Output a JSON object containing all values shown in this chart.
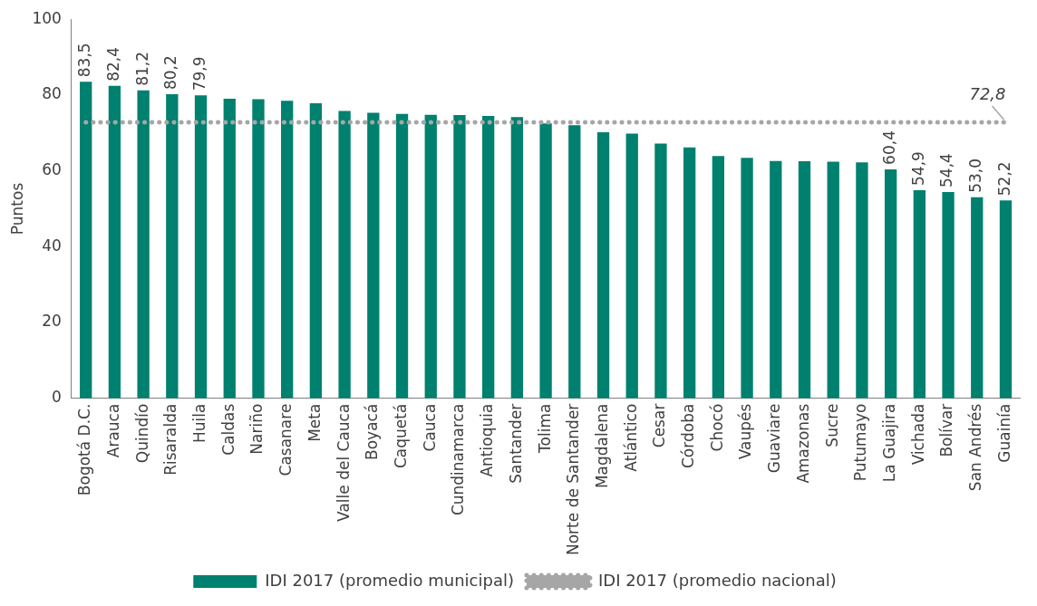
{
  "chart_data": {
    "type": "bar",
    "ylabel": "Puntos",
    "categories": [
      "Bogotá D.C.",
      "Arauca",
      "Quindío",
      "Risaralda",
      "Huila",
      "Caldas",
      "Nariño",
      "Casanare",
      "Meta",
      "Valle del Cauca",
      "Boyacá",
      "Caquetá",
      "Cauca",
      "Cundinamarca",
      "Antioquia",
      "Santander",
      "Tolima",
      "Norte de Santander",
      "Magdalena",
      "Atlántico",
      "Cesar",
      "Córdoba",
      "Chocó",
      "Vaupés",
      "Guaviare",
      "Amazonas",
      "Sucre",
      "Putumayo",
      "La Guajira",
      "Vichada",
      "Bolívar",
      "San Andrés",
      "Guainía"
    ],
    "series": [
      {
        "name": "IDI 2017 (promedio municipal)",
        "color": "#00806e",
        "values": [
          83.5,
          82.4,
          81.2,
          80.2,
          79.9,
          79.0,
          78.9,
          78.5,
          77.8,
          75.8,
          75.3,
          75.0,
          74.8,
          74.7,
          74.5,
          74.2,
          72.5,
          72.0,
          70.2,
          69.8,
          67.2,
          66.2,
          63.9,
          63.4,
          62.6,
          62.5,
          62.4,
          62.2,
          60.4,
          54.9,
          54.4,
          53.0,
          52.2
        ],
        "value_labels": [
          "83,5",
          "82,4",
          "81,2",
          "80,2",
          "79,9",
          null,
          null,
          null,
          null,
          null,
          null,
          null,
          null,
          null,
          null,
          null,
          null,
          null,
          null,
          null,
          null,
          null,
          null,
          null,
          null,
          null,
          null,
          null,
          "60,4",
          "54,9",
          "54,4",
          "53,0",
          "52,2"
        ]
      },
      {
        "name": "IDI 2017 (promedio nacional)",
        "type": "line",
        "color": "#a6a6a6",
        "line_style": "dotted",
        "marker": "none",
        "values": [
          72.8,
          72.8,
          72.8,
          72.8,
          72.8,
          72.8,
          72.8,
          72.8,
          72.8,
          72.8,
          72.8,
          72.8,
          72.8,
          72.8,
          72.8,
          72.8,
          72.8,
          72.8,
          72.8,
          72.8,
          72.8,
          72.8,
          72.8,
          72.8,
          72.8,
          72.8,
          72.8,
          72.8,
          72.8,
          72.8,
          72.8,
          72.8,
          72.8
        ]
      }
    ],
    "annotations": [
      {
        "text": "72,8",
        "x": "Guainía",
        "y": 72.8
      }
    ],
    "ylim": [
      0,
      100
    ],
    "yticks": [
      0,
      20,
      40,
      60,
      80,
      100
    ],
    "grid": false,
    "legend": "bottom"
  }
}
